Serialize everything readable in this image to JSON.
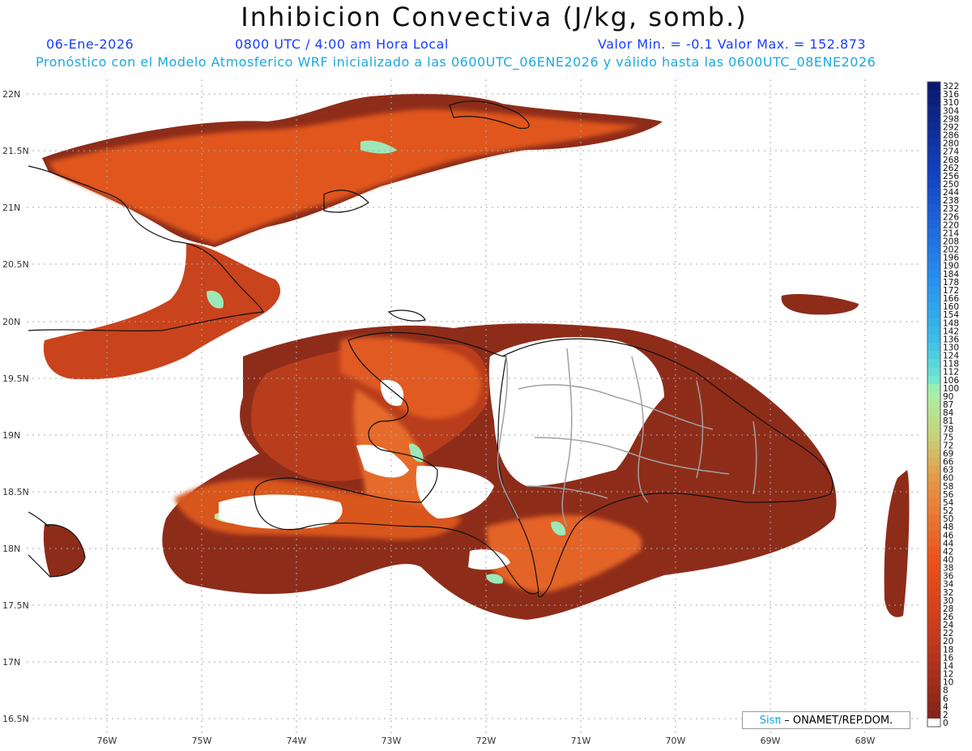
{
  "header": {
    "title": "Inhibicion Convectiva (J/kg, somb.)",
    "date": "06-Ene-2026",
    "time": "0800 UTC / 4:00 am Hora Local",
    "minmax": "Valor Min. = -0.1  Valor Max. = 152.873",
    "subtitle": "Pronóstico con el Modelo Atmosferico WRF inicializado a las 0600UTC_06ENE2026 y válido hasta las  0600UTC_08ENE2026"
  },
  "map": {
    "lat_labels": [
      "22N",
      "21.5N",
      "21N",
      "20.5N",
      "20N",
      "19.5N",
      "19N",
      "18.5N",
      "18N",
      "17.5N",
      "17N",
      "16.5N"
    ],
    "lon_labels": [
      "76W",
      "75W",
      "74W",
      "73W",
      "72W",
      "71W",
      "70W",
      "69W",
      "68W"
    ]
  },
  "legend": {
    "labels": [
      "322",
      "316",
      "310",
      "304",
      "298",
      "292",
      "286",
      "280",
      "274",
      "268",
      "262",
      "256",
      "250",
      "244",
      "238",
      "232",
      "226",
      "220",
      "214",
      "208",
      "202",
      "196",
      "190",
      "184",
      "178",
      "172",
      "166",
      "160",
      "154",
      "148",
      "142",
      "136",
      "130",
      "124",
      "118",
      "112",
      "106",
      "100",
      "90",
      "87",
      "84",
      "81",
      "78",
      "75",
      "72",
      "69",
      "66",
      "63",
      "60",
      "58",
      "56",
      "54",
      "52",
      "50",
      "48",
      "46",
      "44",
      "42",
      "40",
      "38",
      "36",
      "34",
      "32",
      "30",
      "28",
      "26",
      "24",
      "22",
      "20",
      "18",
      "16",
      "14",
      "12",
      "10",
      "8",
      "6",
      "4",
      "2",
      "0"
    ]
  },
  "credit": {
    "brand": "Sis",
    "pi": "π",
    "text": "– ONAMET/REP.DOM."
  }
}
